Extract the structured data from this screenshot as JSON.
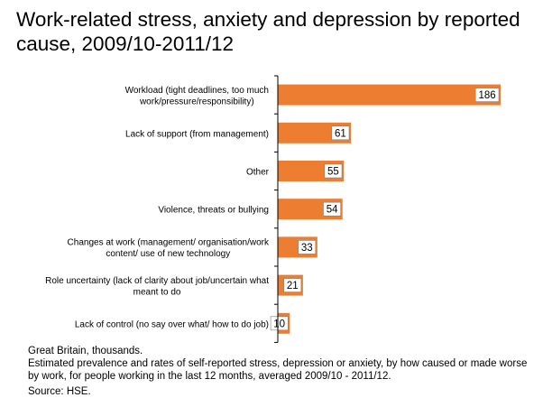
{
  "chart_data": {
    "type": "bar",
    "orientation": "horizontal",
    "title": "Work-related stress, anxiety and depression by reported cause, 2009/10-2011/12",
    "categories": [
      [
        "Workload (tight deadlines, too much",
        "work/pressure/responsibility)"
      ],
      [
        "Lack of support (from management)"
      ],
      [
        "Other"
      ],
      [
        "Violence, threats or bullying"
      ],
      [
        "Changes at work (management/ organisation/work",
        "content/ use of new technology"
      ],
      [
        "Role uncertainty (lack of clarity about job/uncertain what",
        "meant to do"
      ],
      [
        "Lack of control (no say over what/ how to do job)"
      ]
    ],
    "values": [
      186,
      61,
      55,
      54,
      33,
      21,
      10
    ],
    "xlim": [
      0,
      186
    ],
    "bar_color": "#ED7D31",
    "label_box_color": "#FFFFFF",
    "xlabel": "",
    "ylabel": ""
  },
  "notes": {
    "line1": "Great Britain, thousands.",
    "line2": "Estimated prevalence and rates of self-reported stress, depression or anxiety, by how caused or made worse by work, for people working in the last 12 months, averaged 2009/10 - 2011/12.",
    "source": "Source: HSE."
  }
}
